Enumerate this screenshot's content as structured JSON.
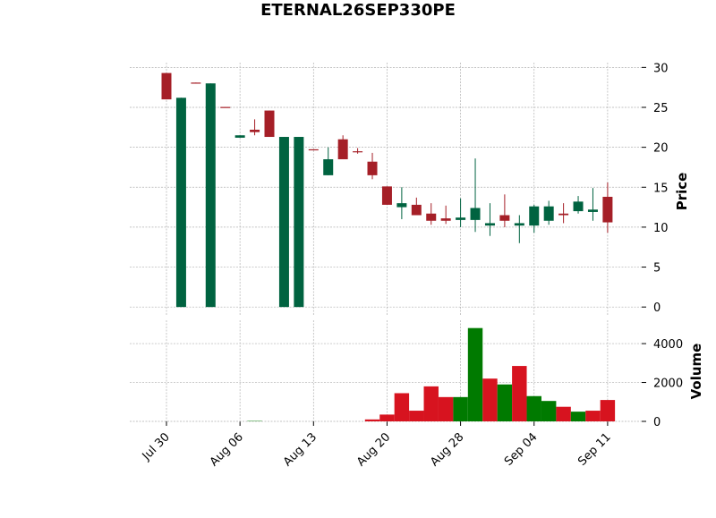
{
  "chart_data": {
    "type": "candlestick",
    "title": "ETERNAL26SEP330PE",
    "y_label": "Price",
    "y2_label": "Volume",
    "categories": [
      "Jul 30",
      null,
      null,
      null,
      null,
      "Aug 06",
      null,
      null,
      null,
      null,
      "Aug 13",
      null,
      null,
      null,
      null,
      "Aug 20",
      null,
      null,
      null,
      null,
      "Aug 28",
      null,
      null,
      null,
      null,
      "Sep 04",
      null,
      null,
      null,
      null,
      "Sep 11"
    ],
    "open": [
      29.3,
      0,
      28.1,
      0,
      25.05,
      21.2,
      22.2,
      24.6,
      0,
      0,
      19.75,
      16.5,
      21,
      19.5,
      18.2,
      15.1,
      12.5,
      12.8,
      11.7,
      11.1,
      10.9,
      10.9,
      10.2,
      11.5,
      10.2,
      10.2,
      10.8,
      11.7,
      12,
      11.9,
      13.8
    ],
    "high": [
      29.3,
      26.2,
      28.1,
      28,
      25.05,
      21.5,
      23.5,
      24.6,
      21.3,
      21.3,
      19.75,
      20,
      21.5,
      19.9,
      19.3,
      15.1,
      15,
      13.7,
      13,
      12.7,
      13.6,
      18.6,
      13,
      14.1,
      11.5,
      12.8,
      13.3,
      13,
      13.9,
      14.9,
      15.6
    ],
    "low": [
      26,
      0,
      28,
      0,
      25,
      21.2,
      21.5,
      21.3,
      0,
      0,
      19.7,
      16.5,
      18.5,
      19.2,
      16,
      12.8,
      11,
      11.5,
      10.3,
      10.4,
      10,
      9.4,
      8.9,
      10,
      8,
      9.3,
      10.3,
      10.5,
      11.7,
      10.8,
      9.3
    ],
    "close": [
      26,
      26.2,
      28,
      28,
      25,
      21.5,
      21.9,
      21.3,
      21.3,
      21.3,
      19.7,
      18.5,
      18.5,
      19.4,
      16.5,
      12.8,
      13,
      11.5,
      10.8,
      10.8,
      11.2,
      12.4,
      10.5,
      10.8,
      10.5,
      12.6,
      12.6,
      11.5,
      13.2,
      12.2,
      10.6
    ],
    "volume": [
      0,
      0,
      0,
      0,
      0,
      0,
      20,
      0,
      0,
      0,
      0,
      0,
      0,
      0,
      100,
      350,
      1450,
      550,
      1800,
      1250,
      1250,
      4800,
      2200,
      1900,
      2850,
      1300,
      1050,
      750,
      500,
      550,
      1100
    ],
    "volume_colors": [
      "#d7131f",
      "#d7131f",
      "#d7131f",
      "#d7131f",
      "#d7131f",
      "#d7131f",
      "#007a00",
      "#d7131f",
      "#d7131f",
      "#d7131f",
      "#d7131f",
      "#d7131f",
      "#d7131f",
      "#d7131f",
      "#d7131f",
      "#d7131f",
      "#d7131f",
      "#d7131f",
      "#d7131f",
      "#d7131f",
      "#007a00",
      "#007a00",
      "#d7131f",
      "#007a00",
      "#d7131f",
      "#007a00",
      "#007a00",
      "#d7131f",
      "#007a00",
      "#d7131f",
      "#d7131f"
    ],
    "up_color": "#006340",
    "down_color": "#a51f27",
    "ylim": [
      -1.1,
      30.6
    ],
    "yticks": [
      0,
      5,
      10,
      15,
      20,
      25,
      30
    ],
    "y2lim": [
      0,
      5200
    ],
    "y2ticks": [
      0,
      2000,
      4000
    ],
    "grid": true
  }
}
